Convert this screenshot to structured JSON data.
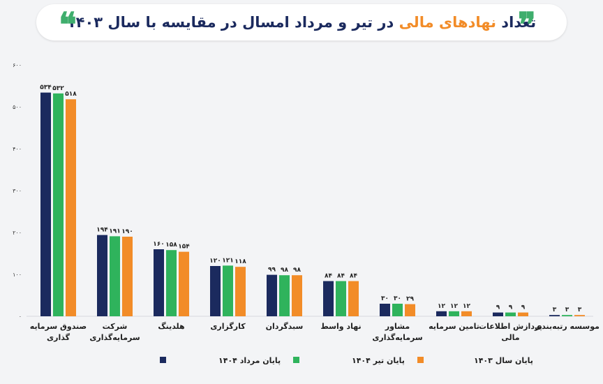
{
  "title": {
    "before": "تعداد ",
    "accent": "نهادهای مالی",
    "after": " در تیر و مرداد امسال در مقایسه با سال ۱۴۰۳",
    "accent_color": "#f28c28",
    "text_color": "#1b2a5e",
    "quote_left": "❝",
    "quote_right": "❞"
  },
  "chart_data": {
    "type": "bar",
    "ylim": [
      0,
      600
    ],
    "yticks": [
      {
        "value": 0,
        "label": "۰"
      },
      {
        "value": 100,
        "label": "۱۰۰"
      },
      {
        "value": 200,
        "label": "۲۰۰"
      },
      {
        "value": 300,
        "label": "۳۰۰"
      },
      {
        "value": 400,
        "label": "۴۰۰"
      },
      {
        "value": 500,
        "label": "۵۰۰"
      },
      {
        "value": 600,
        "label": "۶۰۰"
      }
    ],
    "categories": [
      [
        "صندوق سرمایه",
        "گذاری"
      ],
      [
        "شرکت",
        "سرمایه‌گذاری"
      ],
      [
        "هلدینگ"
      ],
      [
        "کارگزاری"
      ],
      [
        "سبدگردان"
      ],
      [
        "نهاد واسط"
      ],
      [
        "مشاور",
        "سرمایه‌گذاری"
      ],
      [
        "تامین سرمایه"
      ],
      [
        "پردازش اطلاعات",
        "مالی"
      ],
      [
        "موسسه رتبه‌بندی"
      ]
    ],
    "series": [
      {
        "name": "پایان مرداد ۱۴۰۴",
        "color": "#1b2a5e",
        "values": [
          534,
          194,
          160,
          120,
          99,
          84,
          30,
          12,
          9,
          3
        ],
        "labels": [
          "۵۳۴",
          "۱۹۴",
          "۱۶۰",
          "۱۲۰",
          "۹۹",
          "۸۴",
          "۳۰",
          "۱۲",
          "۹",
          "۳"
        ]
      },
      {
        "name": "پایان تیر ۱۴۰۴",
        "color": "#2fb35c",
        "values": [
          532,
          191,
          158,
          121,
          98,
          84,
          30,
          12,
          9,
          3
        ],
        "labels": [
          "۵۳۲",
          "۱۹۱",
          "۱۵۸",
          "۱۲۱",
          "۹۸",
          "۸۴",
          "۳۰",
          "۱۲",
          "۹",
          "۳"
        ]
      },
      {
        "name": "پایان سال ۱۴۰۳",
        "color": "#f28c28",
        "values": [
          518,
          190,
          154,
          118,
          98,
          84,
          29,
          12,
          9,
          3
        ],
        "labels": [
          "۵۱۸",
          "۱۹۰",
          "۱۵۴",
          "۱۱۸",
          "۹۸",
          "۸۴",
          "۲۹",
          "۱۲",
          "۹",
          "۳"
        ]
      }
    ],
    "legend": "bottom",
    "grid": false
  }
}
